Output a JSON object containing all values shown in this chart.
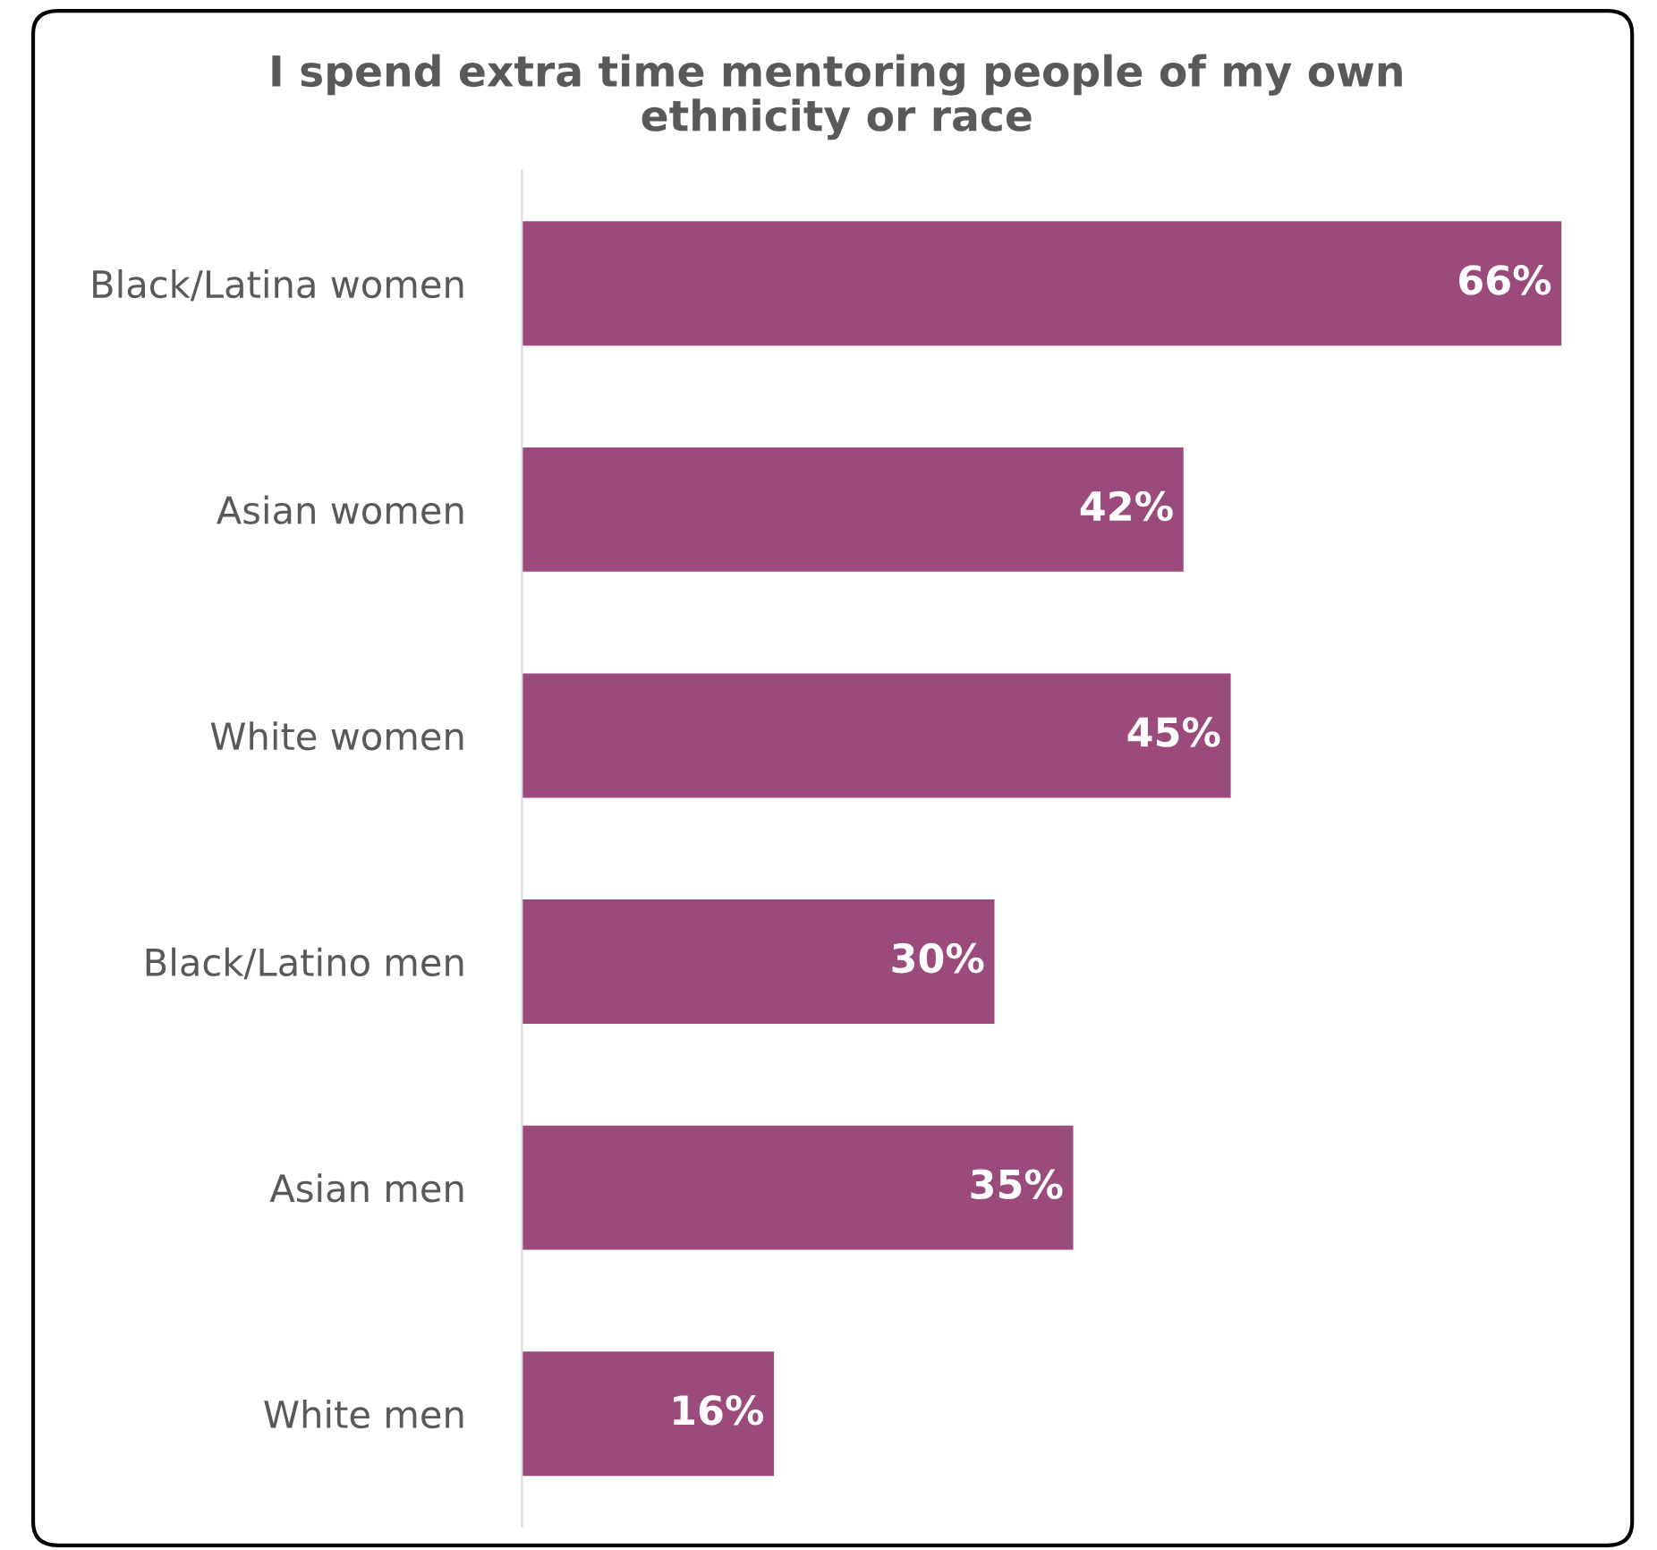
{
  "chart_data": {
    "type": "bar",
    "orientation": "horizontal",
    "title": "I spend extra time mentoring people of my own\nethnicity or race",
    "categories": [
      "Black/Latina women",
      "Asian women",
      "White women",
      "Black/Latino men",
      "Asian men",
      "White men"
    ],
    "values": [
      66,
      42,
      45,
      30,
      35,
      16
    ],
    "value_labels": [
      "66%",
      "42%",
      "45%",
      "30%",
      "35%",
      "16%"
    ],
    "color": "#9a4a7b",
    "grid": false,
    "legend": false,
    "tick_labels": "y"
  }
}
